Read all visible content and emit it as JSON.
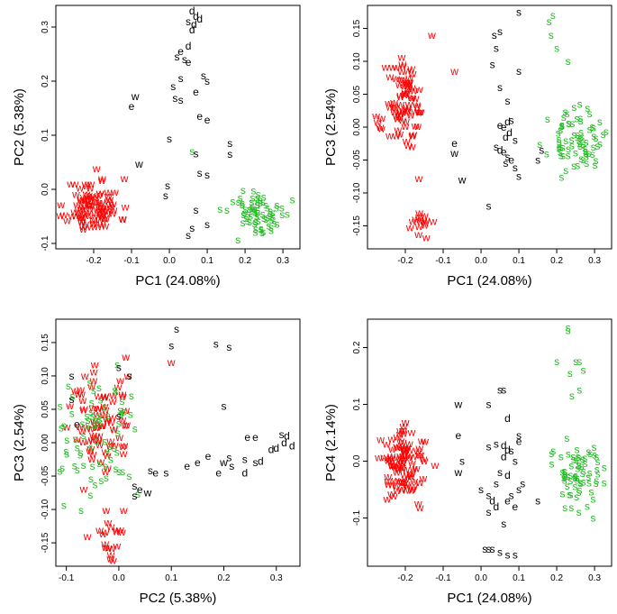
{
  "colors": {
    "w": "#ff0000",
    "s_green": "#22bb22",
    "black": "#000000"
  },
  "chart_data": [
    {
      "type": "scatter",
      "xlabel": "PC1 (24.08%)",
      "ylabel": "PC2 (5.38%)",
      "xlim": [
        -0.3,
        0.345
      ],
      "ylim": [
        -0.11,
        0.34
      ],
      "xticks": [
        -0.2,
        -0.1,
        0.0,
        0.1,
        0.2,
        0.3
      ],
      "xticklabels": [
        "-0.2",
        "-0.1",
        "0.0",
        "0.1",
        "0.2",
        "0.3"
      ],
      "yticks": [
        -0.1,
        0.0,
        0.1,
        0.2,
        0.3
      ],
      "yticklabels": [
        "-0.1",
        "0.0",
        "0.1",
        "0.2",
        "0.3"
      ],
      "clusters": [
        {
          "label": "w",
          "color": "red",
          "cx": -0.2,
          "cy": -0.03,
          "sx": 0.035,
          "sy": 0.025,
          "n": 100,
          "seed": 11
        },
        {
          "label": "s",
          "color": "green",
          "cx": 0.24,
          "cy": -0.045,
          "sx": 0.04,
          "sy": 0.022,
          "n": 75,
          "seed": 12
        }
      ],
      "points": [
        {
          "x": 0.06,
          "y": 0.33,
          "label": "d"
        },
        {
          "x": 0.07,
          "y": 0.32,
          "label": "d"
        },
        {
          "x": 0.08,
          "y": 0.315,
          "label": "d"
        },
        {
          "x": 0.05,
          "y": 0.31,
          "label": "s"
        },
        {
          "x": 0.065,
          "y": 0.305,
          "label": "d"
        },
        {
          "x": 0.06,
          "y": 0.295,
          "label": "d"
        },
        {
          "x": 0.03,
          "y": 0.255,
          "label": "e"
        },
        {
          "x": 0.05,
          "y": 0.265,
          "label": "d"
        },
        {
          "x": 0.02,
          "y": 0.245,
          "label": "s"
        },
        {
          "x": 0.04,
          "y": 0.24,
          "label": "s"
        },
        {
          "x": 0.05,
          "y": 0.235,
          "label": "e"
        },
        {
          "x": 0.03,
          "y": 0.205,
          "label": "s"
        },
        {
          "x": 0.09,
          "y": 0.21,
          "label": "s"
        },
        {
          "x": 0.1,
          "y": 0.2,
          "label": "s"
        },
        {
          "x": 0.01,
          "y": 0.19,
          "label": "s"
        },
        {
          "x": 0.07,
          "y": 0.18,
          "label": "e"
        },
        {
          "x": -0.09,
          "y": 0.172,
          "label": "w"
        },
        {
          "x": 0.015,
          "y": 0.168,
          "label": "s"
        },
        {
          "x": 0.03,
          "y": 0.165,
          "label": "s"
        },
        {
          "x": -0.1,
          "y": 0.153,
          "label": "e"
        },
        {
          "x": 0.08,
          "y": 0.135,
          "label": "e"
        },
        {
          "x": 0.1,
          "y": 0.128,
          "label": "e"
        },
        {
          "x": -0.0,
          "y": 0.093,
          "label": "s"
        },
        {
          "x": 0.16,
          "y": 0.085,
          "label": "s"
        },
        {
          "x": 0.06,
          "y": 0.07,
          "label": "S"
        },
        {
          "x": 0.07,
          "y": 0.066,
          "label": "s"
        },
        {
          "x": -0.08,
          "y": 0.047,
          "label": "w"
        },
        {
          "x": 0.16,
          "y": 0.065,
          "label": "s"
        },
        {
          "x": 0.08,
          "y": 0.03,
          "label": "s"
        },
        {
          "x": 0.1,
          "y": 0.027,
          "label": "s"
        },
        {
          "x": -0.005,
          "y": 0.007,
          "label": "s"
        },
        {
          "x": -0.01,
          "y": -0.012,
          "label": "s"
        },
        {
          "x": 0.07,
          "y": -0.038,
          "label": "s"
        },
        {
          "x": 0.06,
          "y": -0.072,
          "label": "s"
        },
        {
          "x": 0.05,
          "y": -0.085,
          "label": "s"
        },
        {
          "x": 0.1,
          "y": -0.065,
          "label": "s"
        }
      ]
    },
    {
      "type": "scatter",
      "xlabel": "PC1 (24.08%)",
      "ylabel": "PC3 (2.54%)",
      "xlim": [
        -0.3,
        0.345
      ],
      "ylim": [
        -0.185,
        0.185
      ],
      "xticks": [
        -0.2,
        -0.1,
        0.0,
        0.1,
        0.2,
        0.3
      ],
      "xticklabels": [
        "-0.2",
        "-0.1",
        "0.0",
        "0.1",
        "0.2",
        "0.3"
      ],
      "yticks": [
        -0.15,
        -0.1,
        -0.05,
        0.0,
        0.05,
        0.1,
        0.15
      ],
      "yticklabels": [
        "-0.15",
        "-0.10",
        "-0.05",
        "0.00",
        "0.05",
        "0.10",
        "0.15"
      ],
      "clusters": [
        {
          "label": "w",
          "color": "red",
          "cx": -0.2,
          "cy": 0.03,
          "sx": 0.025,
          "sy": 0.035,
          "n": 85,
          "seed": 21
        },
        {
          "label": "w",
          "color": "red",
          "cx": -0.16,
          "cy": -0.145,
          "sx": 0.015,
          "sy": 0.012,
          "n": 15,
          "seed": 22
        },
        {
          "label": "s",
          "color": "green",
          "cx": 0.25,
          "cy": -0.02,
          "sx": 0.035,
          "sy": 0.022,
          "n": 75,
          "seed": 23
        }
      ],
      "points": [
        {
          "x": 0.1,
          "y": 0.175,
          "label": "s"
        },
        {
          "x": 0.05,
          "y": 0.145,
          "label": "s"
        },
        {
          "x": 0.035,
          "y": 0.14,
          "label": "s"
        },
        {
          "x": 0.04,
          "y": 0.12,
          "label": "s"
        },
        {
          "x": 0.03,
          "y": 0.095,
          "label": "s"
        },
        {
          "x": 0.1,
          "y": 0.085,
          "label": "s"
        },
        {
          "x": -0.13,
          "y": 0.14,
          "label": "w"
        },
        {
          "x": -0.07,
          "y": 0.085,
          "label": "w"
        },
        {
          "x": 0.05,
          "y": 0.06,
          "label": "s"
        },
        {
          "x": 0.07,
          "y": 0.04,
          "label": "s"
        },
        {
          "x": 0.08,
          "y": 0.01,
          "label": "s"
        },
        {
          "x": 0.07,
          "y": 0.008,
          "label": "d"
        },
        {
          "x": 0.05,
          "y": 0.003,
          "label": "e"
        },
        {
          "x": 0.06,
          "y": 0.0,
          "label": "e"
        },
        {
          "x": 0.075,
          "y": -0.008,
          "label": "d"
        },
        {
          "x": 0.065,
          "y": -0.015,
          "label": "d"
        },
        {
          "x": 0.09,
          "y": -0.02,
          "label": "s"
        },
        {
          "x": 0.04,
          "y": -0.03,
          "label": "s"
        },
        {
          "x": 0.05,
          "y": -0.035,
          "label": "d"
        },
        {
          "x": 0.06,
          "y": -0.038,
          "label": "e"
        },
        {
          "x": 0.07,
          "y": -0.045,
          "label": "s"
        },
        {
          "x": 0.08,
          "y": -0.05,
          "label": "e"
        },
        {
          "x": 0.065,
          "y": -0.055,
          "label": "s"
        },
        {
          "x": 0.09,
          "y": -0.062,
          "label": "s"
        },
        {
          "x": 0.1,
          "y": -0.075,
          "label": "s"
        },
        {
          "x": -0.07,
          "y": -0.025,
          "label": "e"
        },
        {
          "x": -0.07,
          "y": -0.04,
          "label": "w"
        },
        {
          "x": -0.05,
          "y": -0.08,
          "label": "w"
        },
        {
          "x": 0.02,
          "y": -0.12,
          "label": "s"
        },
        {
          "x": 0.15,
          "y": -0.05,
          "label": "s"
        },
        {
          "x": 0.16,
          "y": -0.035,
          "label": "s"
        },
        {
          "x": 0.18,
          "y": 0.16,
          "label": "S"
        },
        {
          "x": 0.185,
          "y": 0.14,
          "label": "S"
        },
        {
          "x": 0.19,
          "y": 0.17,
          "label": "S"
        },
        {
          "x": 0.2,
          "y": 0.12,
          "label": "S"
        },
        {
          "x": 0.23,
          "y": 0.1,
          "label": "S"
        }
      ]
    },
    {
      "type": "scatter",
      "xlabel": "PC2 (5.38%)",
      "ylabel": "PC3 (2.54%)",
      "xlim": [
        -0.12,
        0.345
      ],
      "ylim": [
        -0.185,
        0.185
      ],
      "xticks": [
        -0.1,
        0.0,
        0.1,
        0.2,
        0.3
      ],
      "xticklabels": [
        "-0.1",
        "0.0",
        "0.1",
        "0.2",
        "0.3"
      ],
      "yticks": [
        -0.15,
        -0.1,
        -0.05,
        0.0,
        0.05,
        0.1,
        0.15
      ],
      "yticklabels": [
        "-0.15",
        "-0.10",
        "-0.05",
        "0.00",
        "0.05",
        "0.10",
        "0.15"
      ],
      "clusters": [
        {
          "label": "w",
          "color": "red",
          "cx": -0.035,
          "cy": 0.03,
          "sx": 0.03,
          "sy": 0.04,
          "n": 80,
          "seed": 31
        },
        {
          "label": "w",
          "color": "red",
          "cx": -0.01,
          "cy": -0.14,
          "sx": 0.018,
          "sy": 0.02,
          "n": 20,
          "seed": 32
        },
        {
          "label": "s",
          "color": "green",
          "cx": -0.045,
          "cy": 0.0,
          "sx": 0.035,
          "sy": 0.045,
          "n": 75,
          "seed": 33
        }
      ],
      "points": [
        {
          "x": 0.11,
          "y": 0.17,
          "label": "s"
        },
        {
          "x": 0.1,
          "y": 0.145,
          "label": "s"
        },
        {
          "x": 0.185,
          "y": 0.148,
          "label": "s"
        },
        {
          "x": 0.21,
          "y": 0.143,
          "label": "s"
        },
        {
          "x": 0.0,
          "y": 0.113,
          "label": "s"
        },
        {
          "x": 0.02,
          "y": 0.1,
          "label": "s"
        },
        {
          "x": -0.09,
          "y": 0.1,
          "label": "s"
        },
        {
          "x": -0.09,
          "y": 0.065,
          "label": "s"
        },
        {
          "x": 0.2,
          "y": 0.055,
          "label": "s"
        },
        {
          "x": -0.08,
          "y": 0.028,
          "label": "e"
        },
        {
          "x": 0.0,
          "y": 0.04,
          "label": "s"
        },
        {
          "x": 0.26,
          "y": 0.008,
          "label": "e"
        },
        {
          "x": 0.245,
          "y": 0.008,
          "label": "e"
        },
        {
          "x": 0.31,
          "y": 0.012,
          "label": "s"
        },
        {
          "x": 0.32,
          "y": 0.01,
          "label": "d"
        },
        {
          "x": 0.315,
          "y": 0.0,
          "label": "d"
        },
        {
          "x": 0.3,
          "y": -0.008,
          "label": "d"
        },
        {
          "x": 0.33,
          "y": -0.005,
          "label": "d"
        },
        {
          "x": 0.29,
          "y": -0.01,
          "label": "d"
        },
        {
          "x": 0.21,
          "y": -0.022,
          "label": "s"
        },
        {
          "x": 0.24,
          "y": -0.025,
          "label": "s"
        },
        {
          "x": 0.26,
          "y": -0.03,
          "label": "s"
        },
        {
          "x": 0.27,
          "y": -0.028,
          "label": "d"
        },
        {
          "x": 0.215,
          "y": -0.035,
          "label": "s"
        },
        {
          "x": 0.17,
          "y": -0.02,
          "label": "e"
        },
        {
          "x": 0.2,
          "y": -0.03,
          "label": "w"
        },
        {
          "x": 0.13,
          "y": -0.035,
          "label": "e"
        },
        {
          "x": 0.15,
          "y": -0.03,
          "label": "e"
        },
        {
          "x": 0.19,
          "y": -0.045,
          "label": "e"
        },
        {
          "x": 0.24,
          "y": -0.045,
          "label": "d"
        },
        {
          "x": 0.06,
          "y": -0.042,
          "label": "s"
        },
        {
          "x": 0.09,
          "y": -0.045,
          "label": "s"
        },
        {
          "x": 0.07,
          "y": -0.045,
          "label": "e"
        },
        {
          "x": 0.03,
          "y": -0.065,
          "label": "s"
        },
        {
          "x": 0.04,
          "y": -0.07,
          "label": "e"
        },
        {
          "x": 0.055,
          "y": -0.075,
          "label": "w"
        },
        {
          "x": 0.03,
          "y": -0.08,
          "label": "s"
        },
        {
          "x": 0.1,
          "y": 0.12,
          "label": "w"
        }
      ]
    },
    {
      "type": "scatter",
      "xlabel": "PC1 (24.08%)",
      "ylabel": "PC4 (2.14%)",
      "xlim": [
        -0.3,
        0.345
      ],
      "ylim": [
        -0.185,
        0.25
      ],
      "xticks": [
        -0.2,
        -0.1,
        0.0,
        0.1,
        0.2,
        0.3
      ],
      "xticklabels": [
        "-0.2",
        "-0.1",
        "0.0",
        "0.1",
        "0.2",
        "0.3"
      ],
      "yticks": [
        -0.1,
        0.0,
        0.1,
        0.2
      ],
      "yticklabels": [
        "-0.1",
        "0.0",
        "0.1",
        "0.2"
      ],
      "clusters": [
        {
          "label": "w",
          "color": "red",
          "cx": -0.2,
          "cy": -0.005,
          "sx": 0.03,
          "sy": 0.03,
          "n": 100,
          "seed": 41
        },
        {
          "label": "s",
          "color": "green",
          "cx": 0.25,
          "cy": -0.02,
          "sx": 0.04,
          "sy": 0.03,
          "n": 70,
          "seed": 42
        }
      ],
      "points": [
        {
          "x": 0.23,
          "y": 0.235,
          "label": "S"
        },
        {
          "x": 0.23,
          "y": 0.23,
          "label": "S"
        },
        {
          "x": 0.2,
          "y": 0.175,
          "label": "S"
        },
        {
          "x": 0.25,
          "y": 0.175,
          "label": "S"
        },
        {
          "x": 0.26,
          "y": 0.175,
          "label": "S"
        },
        {
          "x": 0.235,
          "y": 0.155,
          "label": "S"
        },
        {
          "x": 0.27,
          "y": 0.16,
          "label": "S"
        },
        {
          "x": 0.24,
          "y": 0.115,
          "label": "S"
        },
        {
          "x": 0.26,
          "y": 0.125,
          "label": "S"
        },
        {
          "x": 0.05,
          "y": 0.125,
          "label": "s"
        },
        {
          "x": 0.06,
          "y": 0.125,
          "label": "s"
        },
        {
          "x": 0.02,
          "y": 0.1,
          "label": "s"
        },
        {
          "x": -0.06,
          "y": 0.1,
          "label": "w"
        },
        {
          "x": 0.07,
          "y": 0.075,
          "label": "d"
        },
        {
          "x": -0.06,
          "y": 0.045,
          "label": "e"
        },
        {
          "x": 0.1,
          "y": 0.045,
          "label": "s"
        },
        {
          "x": 0.1,
          "y": 0.035,
          "label": "e"
        },
        {
          "x": 0.04,
          "y": 0.03,
          "label": "s"
        },
        {
          "x": 0.02,
          "y": 0.025,
          "label": "s"
        },
        {
          "x": 0.06,
          "y": 0.028,
          "label": "d"
        },
        {
          "x": 0.07,
          "y": 0.02,
          "label": "d"
        },
        {
          "x": 0.08,
          "y": 0.018,
          "label": "s"
        },
        {
          "x": 0.06,
          "y": 0.008,
          "label": "d"
        },
        {
          "x": 0.09,
          "y": 0.0,
          "label": "s"
        },
        {
          "x": -0.05,
          "y": 0.0,
          "label": "s"
        },
        {
          "x": -0.06,
          "y": -0.02,
          "label": "w"
        },
        {
          "x": 0.05,
          "y": -0.02,
          "label": "s"
        },
        {
          "x": 0.07,
          "y": -0.025,
          "label": "d"
        },
        {
          "x": 0.04,
          "y": -0.04,
          "label": "s"
        },
        {
          "x": 0.11,
          "y": -0.04,
          "label": "s"
        },
        {
          "x": 0.0,
          "y": -0.05,
          "label": "s"
        },
        {
          "x": 0.02,
          "y": -0.06,
          "label": "s"
        },
        {
          "x": 0.03,
          "y": -0.07,
          "label": "d"
        },
        {
          "x": 0.04,
          "y": -0.08,
          "label": "d"
        },
        {
          "x": 0.07,
          "y": -0.07,
          "label": "e"
        },
        {
          "x": 0.08,
          "y": -0.06,
          "label": "s"
        },
        {
          "x": 0.09,
          "y": -0.08,
          "label": "e"
        },
        {
          "x": 0.15,
          "y": -0.07,
          "label": "s"
        },
        {
          "x": 0.06,
          "y": -0.11,
          "label": "s"
        },
        {
          "x": 0.02,
          "y": -0.09,
          "label": "s"
        },
        {
          "x": 0.1,
          "y": -0.05,
          "label": "s"
        },
        {
          "x": 0.01,
          "y": -0.155,
          "label": "s"
        },
        {
          "x": 0.02,
          "y": -0.155,
          "label": "s"
        },
        {
          "x": 0.03,
          "y": -0.155,
          "label": "s"
        },
        {
          "x": 0.05,
          "y": -0.16,
          "label": "s"
        },
        {
          "x": 0.07,
          "y": -0.165,
          "label": "s"
        },
        {
          "x": 0.09,
          "y": -0.165,
          "label": "s"
        }
      ]
    }
  ]
}
